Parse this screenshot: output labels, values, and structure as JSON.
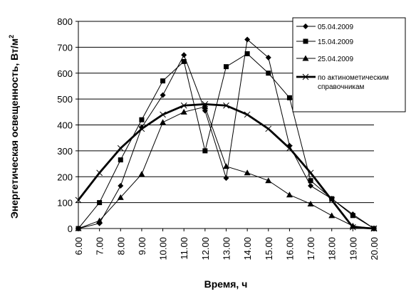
{
  "chart_data": {
    "type": "line",
    "xlabel": "Время, ч",
    "ylabel": "Энергетическая освещенность, Вт/м²",
    "ylabel_main": "Энергетическая освещенность, Вт/м",
    "ylabel_sup": "2",
    "x_tick_labels": [
      "6.00",
      "7.00",
      "8.00",
      "9.00",
      "10.00",
      "11.00",
      "12.00",
      "13.00",
      "14.00",
      "15.00",
      "16.00",
      "17.00",
      "18.00",
      "19.00",
      "20.00"
    ],
    "y_ticks": [
      0,
      100,
      200,
      300,
      400,
      500,
      600,
      700,
      800
    ],
    "x": [
      6,
      7,
      8,
      9,
      10,
      11,
      12,
      13,
      14,
      15,
      16,
      17,
      18,
      19,
      20
    ],
    "xlim": [
      6,
      20
    ],
    "ylim": [
      0,
      800
    ],
    "grid": "horizontal",
    "legend_position": "top-right",
    "series": [
      {
        "name": "05.04.2009",
        "marker": "diamond",
        "x": [
          6,
          7,
          8,
          9,
          10,
          11,
          12,
          13,
          14,
          15,
          16,
          17,
          18,
          19,
          20
        ],
        "values": [
          0,
          20,
          165,
          390,
          515,
          670,
          455,
          195,
          730,
          660,
          320,
          165,
          115,
          55,
          0
        ]
      },
      {
        "name": "15.04.2009",
        "marker": "square",
        "x": [
          6,
          7,
          8,
          9,
          10,
          11,
          12,
          13,
          14,
          15,
          16,
          17,
          18,
          19,
          20
        ],
        "values": [
          0,
          100,
          265,
          420,
          570,
          645,
          300,
          625,
          675,
          600,
          505,
          185,
          115,
          50,
          0
        ]
      },
      {
        "name": "25.04.2009",
        "marker": "triangle",
        "x": [
          6,
          7,
          8,
          9,
          10,
          11,
          12,
          13,
          14,
          15,
          16,
          17,
          18,
          19,
          20
        ],
        "values": [
          0,
          30,
          120,
          210,
          410,
          450,
          470,
          240,
          215,
          185,
          130,
          95,
          50,
          10,
          0
        ]
      },
      {
        "name_line1": "по актинометическим",
        "name_line2": "справочникам",
        "marker": "x",
        "bold": true,
        "x": [
          6,
          7,
          8,
          9,
          10,
          11,
          12,
          13,
          14,
          15,
          16,
          17,
          18,
          19,
          20
        ],
        "values": [
          110,
          215,
          310,
          385,
          440,
          475,
          480,
          475,
          440,
          385,
          310,
          215,
          110,
          5,
          0
        ]
      }
    ]
  }
}
